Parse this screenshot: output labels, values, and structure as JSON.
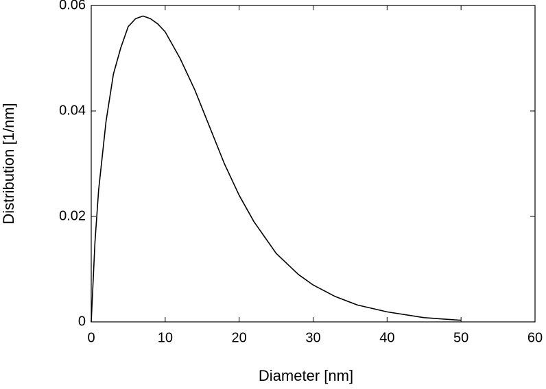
{
  "chart_data": {
    "type": "line",
    "x_label": "Diameter [nm]",
    "y_label": "Distribution [1/nm]",
    "x": [
      0,
      0.5,
      1,
      2,
      3,
      4,
      5,
      6,
      7,
      8,
      9,
      10,
      12,
      14,
      16,
      18,
      20,
      22,
      25,
      28,
      30,
      33,
      36,
      40,
      45,
      50
    ],
    "values": [
      0,
      0.015,
      0.025,
      0.038,
      0.047,
      0.052,
      0.056,
      0.0575,
      0.058,
      0.0575,
      0.0565,
      0.055,
      0.05,
      0.044,
      0.037,
      0.03,
      0.024,
      0.019,
      0.013,
      0.009,
      0.007,
      0.0048,
      0.0032,
      0.0019,
      0.0008,
      0.0003
    ],
    "color": "#000000",
    "xlim": [
      0,
      60
    ],
    "xticks": [
      0,
      10,
      20,
      30,
      40,
      50,
      60
    ],
    "ylim": [
      0,
      0.06
    ],
    "yticks": [
      0,
      0.02,
      0.04,
      0.06
    ],
    "grid": false
  }
}
